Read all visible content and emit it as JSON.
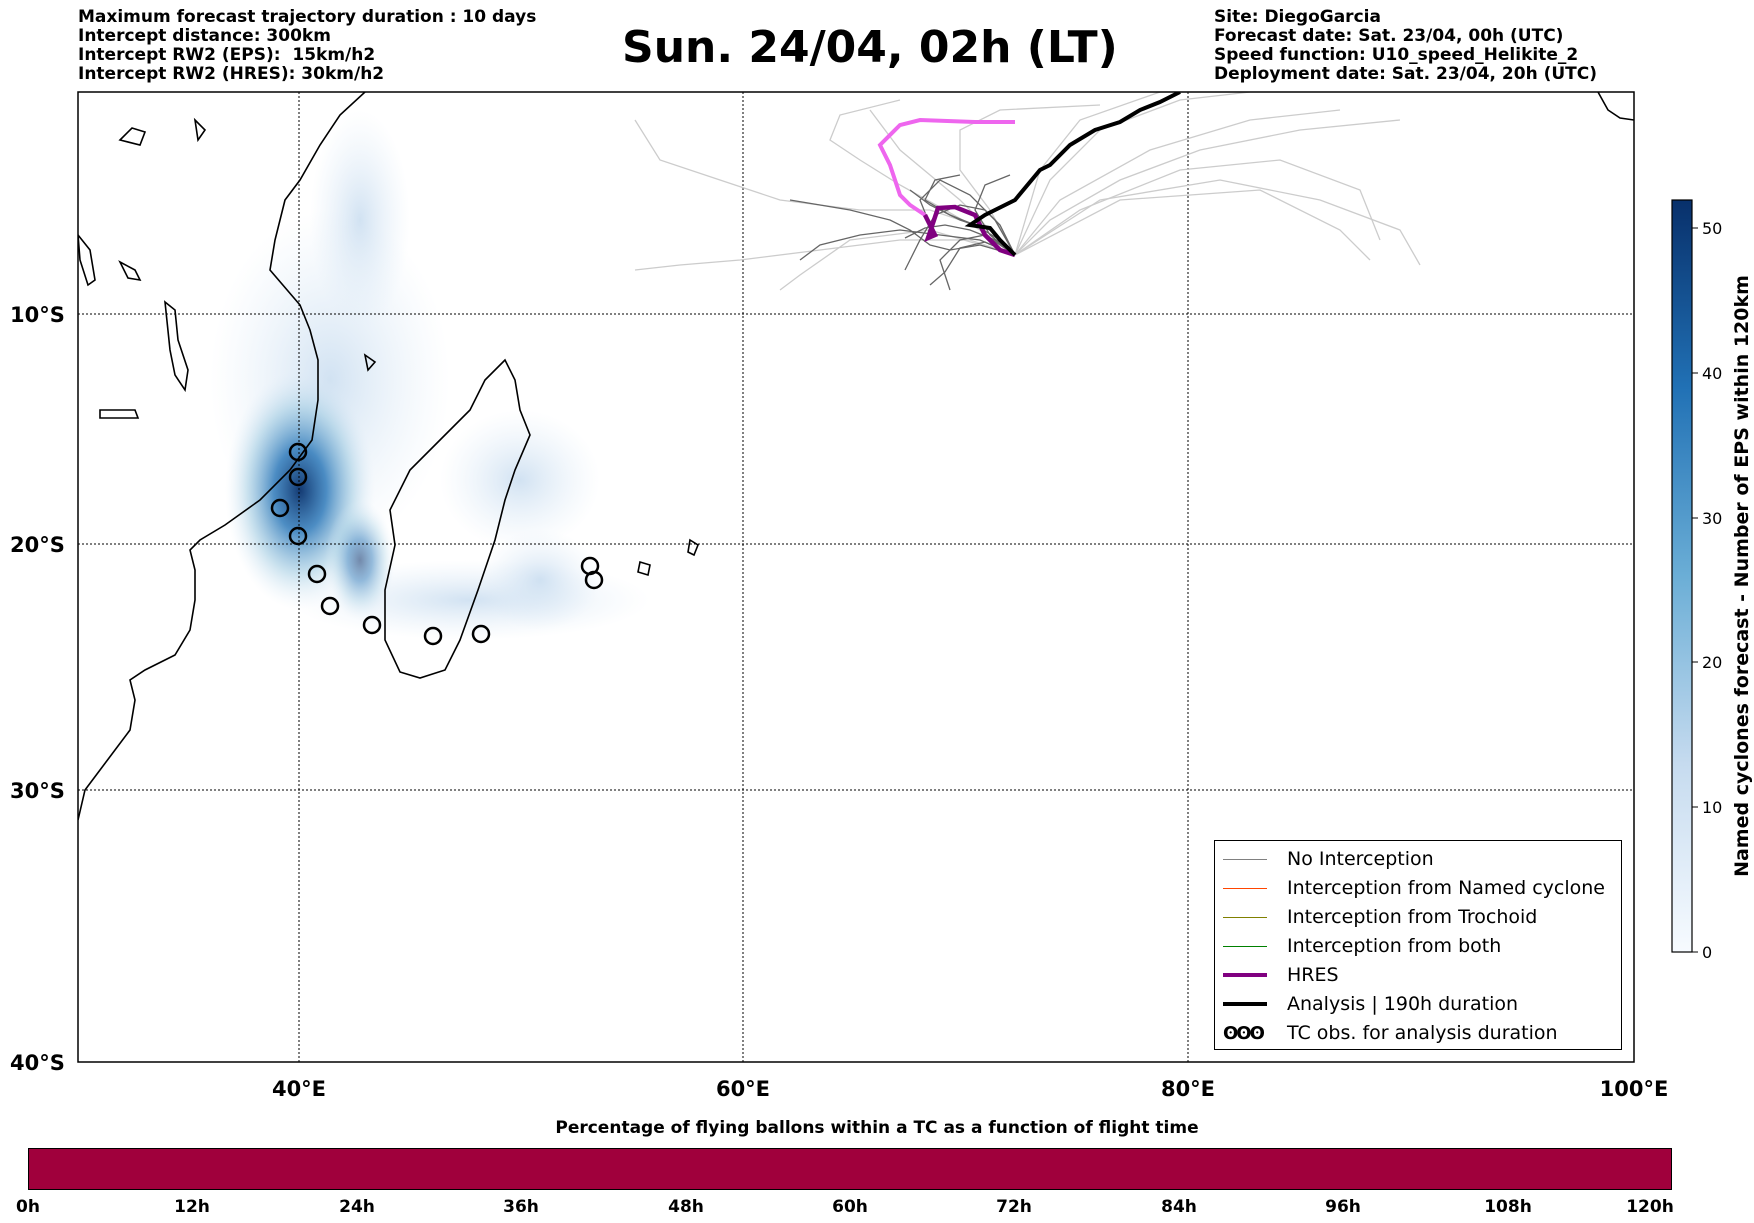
{
  "header": {
    "left_lines": [
      "Maximum forecast trajectory duration : 10 days",
      "Intercept distance: 300km",
      "Intercept RW2 (EPS):  15km/h2",
      "Intercept RW2 (HRES): 30km/h2"
    ],
    "title": "Sun. 24/04, 02h (LT)",
    "right_lines": [
      "Site: DiegoGarcia",
      "Forecast date: Sat. 23/04, 00h (UTC)",
      "Speed function: U10_speed_Helikite_2",
      "Deployment date: Sat. 23/04, 20h (UTC)"
    ]
  },
  "map": {
    "lat_labels": [
      "10°S",
      "20°S",
      "30°S",
      "40°S"
    ],
    "lon_labels": [
      "40°E",
      "60°E",
      "80°E",
      "100°E"
    ],
    "colors": {
      "no_interception": "#808080",
      "named_cyclone": "#ff4500",
      "trochoid": "#808000",
      "both": "#008000",
      "hres": "#800080",
      "hres_light": "#ee66ee",
      "analysis": "#000000",
      "density_max": "#08306b",
      "density_min": "#deebf7"
    }
  },
  "colorbar": {
    "label": "Named cyclones forecast - Number of EPS within 120km",
    "ticks": [
      "0",
      "10",
      "20",
      "30",
      "40",
      "50"
    ]
  },
  "legend": {
    "items": [
      {
        "label": "No Interception",
        "color": "#808080",
        "width": 1.5
      },
      {
        "label": "Interception from Named cyclone",
        "color": "#ff4500",
        "width": 1.5
      },
      {
        "label": "Interception from Trochoid",
        "color": "#808000",
        "width": 1.5
      },
      {
        "label": "Interception from both",
        "color": "#008000",
        "width": 1.5
      },
      {
        "label": "HRES",
        "color": "#800080",
        "width": 4
      },
      {
        "label": "Analysis | 190h duration",
        "color": "#000000",
        "width": 4
      }
    ],
    "tc_obs_glyphs": "ʘʘʘ",
    "tc_obs_label": "TC obs. for analysis duration"
  },
  "bottom_bar": {
    "title": "Percentage of flying ballons within a TC as a function of flight time",
    "color": "#a0003c",
    "ticks": [
      "0h",
      "12h",
      "24h",
      "36h",
      "48h",
      "60h",
      "72h",
      "84h",
      "96h",
      "108h",
      "120h"
    ]
  }
}
